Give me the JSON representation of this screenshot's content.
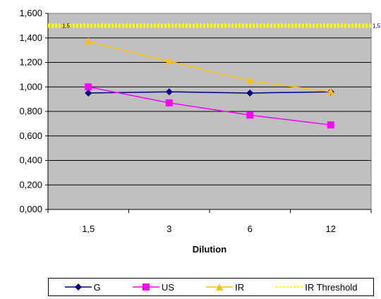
{
  "chart_data": {
    "type": "line",
    "categories": [
      "1,5",
      "3",
      "6",
      "12"
    ],
    "xlabel": "Dilution",
    "ylabel": "",
    "ylim": [
      0,
      1.6
    ],
    "y_ticks": [
      "0,000",
      "0,200",
      "0,400",
      "0,600",
      "0,800",
      "1,000",
      "1,200",
      "1,400",
      "1,600"
    ],
    "grid": true,
    "legend_position": "bottom",
    "series": [
      {
        "name": "G",
        "values": [
          0.95,
          0.96,
          0.95,
          0.96
        ],
        "color": "#000080",
        "marker": "diamond"
      },
      {
        "name": "US",
        "values": [
          1.0,
          0.87,
          0.77,
          0.69
        ],
        "color": "#ff00ff",
        "marker": "square"
      },
      {
        "name": "IR",
        "values": [
          1.37,
          1.21,
          1.05,
          0.96
        ],
        "color": "#ffc000",
        "marker": "triangle"
      },
      {
        "name": "IR Threshold",
        "values": [
          1.5,
          1.5,
          1.5,
          1.5
        ],
        "color": "#ffff00",
        "marker": "none"
      }
    ],
    "threshold_labels": [
      "1,5",
      "1,5"
    ],
    "plot_background": "#c0c0c0"
  }
}
